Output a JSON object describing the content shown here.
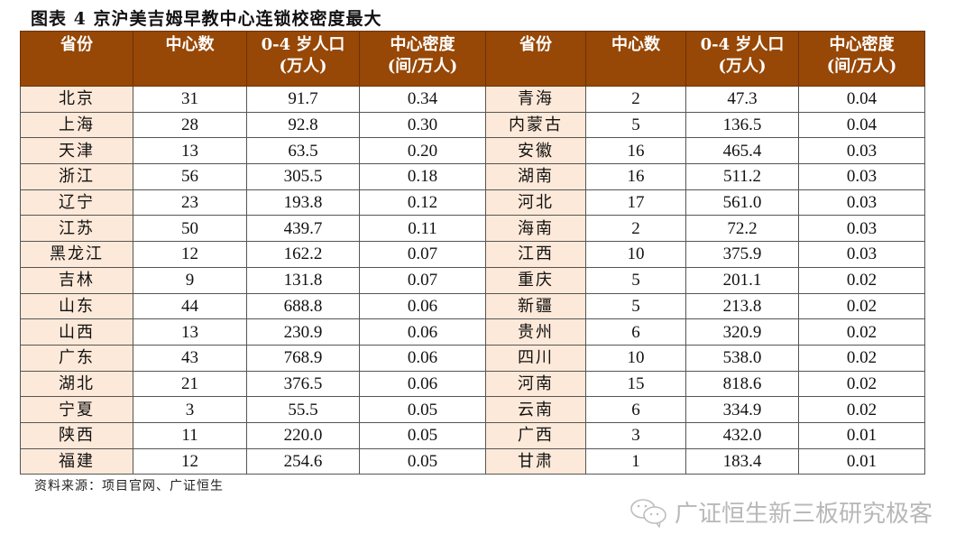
{
  "title": "图表 4 京沪美吉姆早教中心连锁校密度最大",
  "table": {
    "headers": {
      "province": "省份",
      "centers": "中心数",
      "population_line1": "0-4 岁人口",
      "population_line2": "(万人)",
      "density_line1": "中心密度",
      "density_line2": "(间/万人)"
    },
    "header_color": "#974706",
    "province_cell_color": "#fde9d9",
    "rows": [
      {
        "left": {
          "province": "北京",
          "centers": "31",
          "population": "91.7",
          "density": "0.34"
        },
        "right": {
          "province": "青海",
          "centers": "2",
          "population": "47.3",
          "density": "0.04"
        }
      },
      {
        "left": {
          "province": "上海",
          "centers": "28",
          "population": "92.8",
          "density": "0.30"
        },
        "right": {
          "province": "内蒙古",
          "centers": "5",
          "population": "136.5",
          "density": "0.04"
        }
      },
      {
        "left": {
          "province": "天津",
          "centers": "13",
          "population": "63.5",
          "density": "0.20"
        },
        "right": {
          "province": "安徽",
          "centers": "16",
          "population": "465.4",
          "density": "0.03"
        }
      },
      {
        "left": {
          "province": "浙江",
          "centers": "56",
          "population": "305.5",
          "density": "0.18"
        },
        "right": {
          "province": "湖南",
          "centers": "16",
          "population": "511.2",
          "density": "0.03"
        }
      },
      {
        "left": {
          "province": "辽宁",
          "centers": "23",
          "population": "193.8",
          "density": "0.12"
        },
        "right": {
          "province": "河北",
          "centers": "17",
          "population": "561.0",
          "density": "0.03"
        }
      },
      {
        "left": {
          "province": "江苏",
          "centers": "50",
          "population": "439.7",
          "density": "0.11"
        },
        "right": {
          "province": "海南",
          "centers": "2",
          "population": "72.2",
          "density": "0.03"
        }
      },
      {
        "left": {
          "province": "黑龙江",
          "centers": "12",
          "population": "162.2",
          "density": "0.07"
        },
        "right": {
          "province": "江西",
          "centers": "10",
          "population": "375.9",
          "density": "0.03"
        }
      },
      {
        "left": {
          "province": "吉林",
          "centers": "9",
          "population": "131.8",
          "density": "0.07"
        },
        "right": {
          "province": "重庆",
          "centers": "5",
          "population": "201.1",
          "density": "0.02"
        }
      },
      {
        "left": {
          "province": "山东",
          "centers": "44",
          "population": "688.8",
          "density": "0.06"
        },
        "right": {
          "province": "新疆",
          "centers": "5",
          "population": "213.8",
          "density": "0.02"
        }
      },
      {
        "left": {
          "province": "山西",
          "centers": "13",
          "population": "230.9",
          "density": "0.06"
        },
        "right": {
          "province": "贵州",
          "centers": "6",
          "population": "320.9",
          "density": "0.02"
        }
      },
      {
        "left": {
          "province": "广东",
          "centers": "43",
          "population": "768.9",
          "density": "0.06"
        },
        "right": {
          "province": "四川",
          "centers": "10",
          "population": "538.0",
          "density": "0.02"
        }
      },
      {
        "left": {
          "province": "湖北",
          "centers": "21",
          "population": "376.5",
          "density": "0.06"
        },
        "right": {
          "province": "河南",
          "centers": "15",
          "population": "818.6",
          "density": "0.02"
        }
      },
      {
        "left": {
          "province": "宁夏",
          "centers": "3",
          "population": "55.5",
          "density": "0.05"
        },
        "right": {
          "province": "云南",
          "centers": "6",
          "population": "334.9",
          "density": "0.02"
        }
      },
      {
        "left": {
          "province": "陕西",
          "centers": "11",
          "population": "220.0",
          "density": "0.05"
        },
        "right": {
          "province": "广西",
          "centers": "3",
          "population": "432.0",
          "density": "0.01"
        }
      },
      {
        "left": {
          "province": "福建",
          "centers": "12",
          "population": "254.6",
          "density": "0.05"
        },
        "right": {
          "province": "甘肃",
          "centers": "1",
          "population": "183.4",
          "density": "0.01"
        }
      }
    ]
  },
  "source": "资料来源：项目官网、广证恒生",
  "watermark": {
    "icon": "wechat-icon",
    "text": "广证恒生新三板研究极客"
  }
}
